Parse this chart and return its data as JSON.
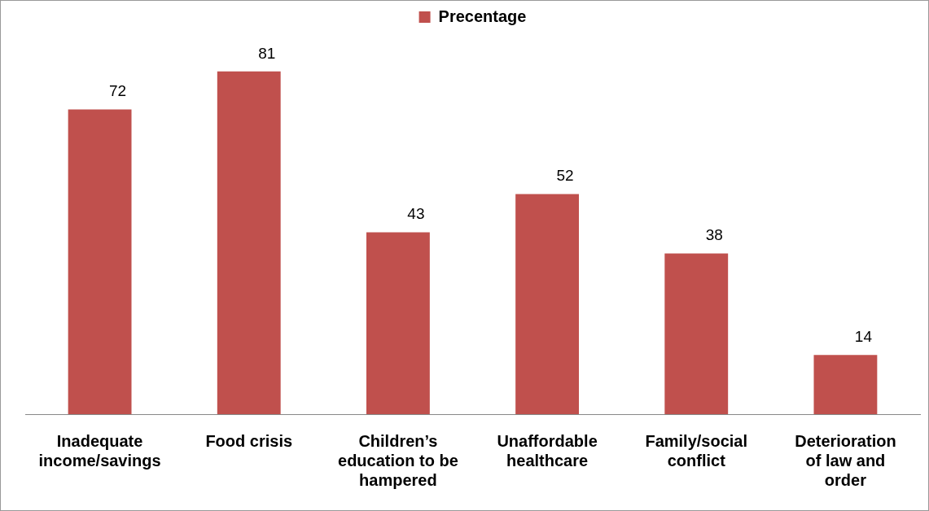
{
  "chart_data": {
    "type": "bar",
    "categories": [
      "Inadequate income/savings",
      "Food crisis",
      "Children’s education to be hampered",
      "Unaffordable healthcare",
      "Family/social conflict",
      "Deterioration of law and order"
    ],
    "series": [
      {
        "name": "Precentage",
        "color": "#c0504d",
        "values": [
          72,
          81,
          43,
          52,
          38,
          14
        ]
      }
    ],
    "data_labels": true,
    "legend": "top",
    "grid": false
  }
}
